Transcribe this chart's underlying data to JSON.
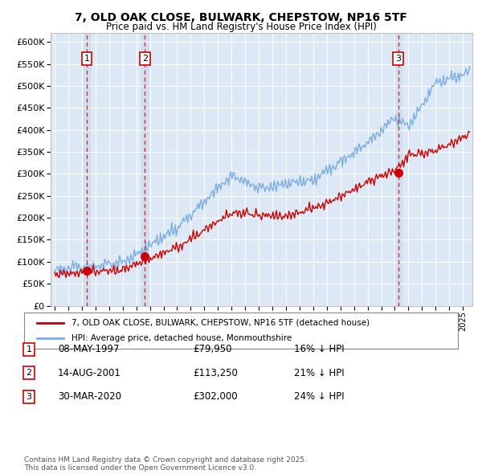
{
  "title_line1": "7, OLD OAK CLOSE, BULWARK, CHEPSTOW, NP16 5TF",
  "title_line2": "Price paid vs. HM Land Registry's House Price Index (HPI)",
  "ytick_values": [
    0,
    50000,
    100000,
    150000,
    200000,
    250000,
    300000,
    350000,
    400000,
    450000,
    500000,
    550000,
    600000
  ],
  "xlim_start": 1994.7,
  "xlim_end": 2025.7,
  "ylim_min": 0,
  "ylim_max": 620000,
  "sale_dates": [
    1997.35,
    2001.62,
    2020.25
  ],
  "sale_prices": [
    79950,
    113250,
    302000
  ],
  "sale_labels": [
    "1",
    "2",
    "3"
  ],
  "sale_pct_below": [
    "16%",
    "21%",
    "24%"
  ],
  "sale_date_strs": [
    "08-MAY-1997",
    "14-AUG-2001",
    "30-MAR-2020"
  ],
  "sale_price_strs": [
    "£79,950",
    "£113,250",
    "£302,000"
  ],
  "hpi_color": "#7aade0",
  "price_color": "#cc0000",
  "background_color": "#dce8f5",
  "legend_label_price": "7, OLD OAK CLOSE, BULWARK, CHEPSTOW, NP16 5TF (detached house)",
  "legend_label_hpi": "HPI: Average price, detached house, Monmouthshire",
  "footnote": "Contains HM Land Registry data © Crown copyright and database right 2025.\nThis data is licensed under the Open Government Licence v3.0."
}
